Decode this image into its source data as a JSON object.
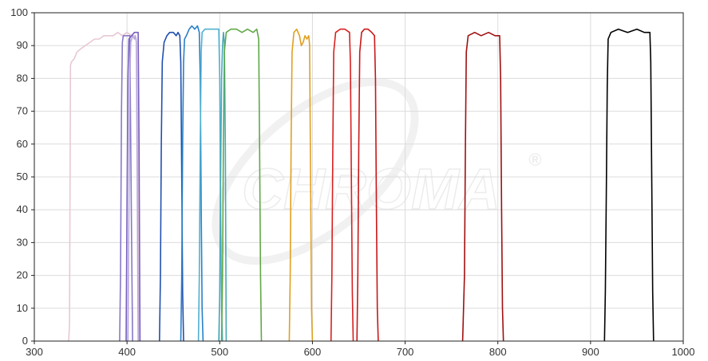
{
  "chart_data": {
    "type": "line",
    "title": "",
    "xlabel": "",
    "ylabel": "",
    "xlim": [
      300,
      1000
    ],
    "ylim": [
      0,
      100
    ],
    "x_ticks": [
      300,
      400,
      500,
      600,
      700,
      800,
      900,
      1000
    ],
    "y_ticks": [
      0,
      10,
      20,
      30,
      40,
      50,
      60,
      70,
      80,
      90,
      100
    ],
    "grid": true,
    "legend": "none",
    "watermark": {
      "brand": "CHROMA",
      "mark": "®"
    },
    "series": [
      {
        "color": "#e8c8d6",
        "points": [
          [
            337,
            0
          ],
          [
            338,
            5
          ],
          [
            339,
            84
          ],
          [
            340,
            85
          ],
          [
            343,
            86
          ],
          [
            346,
            88
          ],
          [
            350,
            89
          ],
          [
            355,
            90
          ],
          [
            360,
            91
          ],
          [
            365,
            92
          ],
          [
            370,
            92
          ],
          [
            375,
            93
          ],
          [
            380,
            93
          ],
          [
            385,
            93
          ],
          [
            390,
            94
          ],
          [
            395,
            93
          ],
          [
            400,
            94
          ],
          [
            405,
            93
          ],
          [
            408,
            93
          ],
          [
            410,
            92
          ],
          [
            412,
            60
          ],
          [
            413,
            0
          ]
        ]
      },
      {
        "color": "#8878c8",
        "points": [
          [
            392,
            0
          ],
          [
            393,
            20
          ],
          [
            394,
            70
          ],
          [
            395,
            91
          ],
          [
            396,
            93
          ],
          [
            400,
            93
          ],
          [
            403,
            93
          ],
          [
            404,
            60
          ],
          [
            405,
            30
          ],
          [
            406,
            0
          ]
        ]
      },
      {
        "color": "#b8a8dc",
        "points": [
          [
            401,
            0
          ],
          [
            402,
            40
          ],
          [
            403,
            80
          ],
          [
            404,
            91
          ],
          [
            406,
            93
          ],
          [
            408,
            92
          ],
          [
            409,
            93
          ],
          [
            410,
            91
          ],
          [
            411,
            50
          ],
          [
            412,
            0
          ]
        ]
      },
      {
        "color": "#7860c0",
        "points": [
          [
            399,
            0
          ],
          [
            400,
            40
          ],
          [
            401,
            80
          ],
          [
            402,
            92
          ],
          [
            405,
            93
          ],
          [
            408,
            94
          ],
          [
            410,
            94
          ],
          [
            412,
            94
          ],
          [
            413,
            60
          ],
          [
            414,
            0
          ]
        ]
      },
      {
        "color": "#2050b0",
        "points": [
          [
            435,
            0
          ],
          [
            436,
            20
          ],
          [
            437,
            60
          ],
          [
            438,
            85
          ],
          [
            440,
            91
          ],
          [
            443,
            93
          ],
          [
            446,
            94
          ],
          [
            450,
            94
          ],
          [
            453,
            93
          ],
          [
            455,
            94
          ],
          [
            457,
            93
          ],
          [
            458,
            85
          ],
          [
            459,
            50
          ],
          [
            460,
            15
          ],
          [
            461,
            0
          ]
        ]
      },
      {
        "color": "#2880c8",
        "points": [
          [
            458,
            0
          ],
          [
            459,
            20
          ],
          [
            460,
            60
          ],
          [
            461,
            85
          ],
          [
            462,
            92
          ],
          [
            464,
            93
          ],
          [
            467,
            95
          ],
          [
            470,
            96
          ],
          [
            473,
            95
          ],
          [
            476,
            96
          ],
          [
            478,
            94
          ],
          [
            479,
            80
          ],
          [
            480,
            40
          ],
          [
            481,
            10
          ],
          [
            482,
            0
          ]
        ]
      },
      {
        "color": "#50b0d0",
        "points": [
          [
            477,
            0
          ],
          [
            478,
            20
          ],
          [
            479,
            60
          ],
          [
            480,
            88
          ],
          [
            481,
            94
          ],
          [
            484,
            95
          ],
          [
            488,
            95
          ],
          [
            492,
            95
          ],
          [
            496,
            95
          ],
          [
            499,
            95
          ],
          [
            500,
            80
          ],
          [
            501,
            40
          ],
          [
            502,
            10
          ],
          [
            503,
            0
          ]
        ]
      },
      {
        "color": "#48a8b8",
        "points": [
          [
            499,
            0
          ],
          [
            500,
            15
          ],
          [
            501,
            50
          ],
          [
            502,
            80
          ],
          [
            503,
            90
          ],
          [
            504,
            94
          ],
          [
            505,
            91
          ],
          [
            506,
            60
          ],
          [
            507,
            0
          ]
        ]
      },
      {
        "color": "#60a848",
        "points": [
          [
            502,
            0
          ],
          [
            503,
            20
          ],
          [
            504,
            60
          ],
          [
            505,
            88
          ],
          [
            507,
            94
          ],
          [
            512,
            95
          ],
          [
            518,
            95
          ],
          [
            524,
            94
          ],
          [
            530,
            95
          ],
          [
            536,
            94
          ],
          [
            540,
            95
          ],
          [
            542,
            92
          ],
          [
            543,
            60
          ],
          [
            544,
            20
          ],
          [
            545,
            0
          ]
        ]
      },
      {
        "color": "#e0a020",
        "points": [
          [
            575,
            0
          ],
          [
            576,
            20
          ],
          [
            577,
            60
          ],
          [
            578,
            88
          ],
          [
            580,
            94
          ],
          [
            583,
            95
          ],
          [
            586,
            93
          ],
          [
            588,
            90
          ],
          [
            590,
            91
          ],
          [
            592,
            93
          ],
          [
            594,
            92
          ],
          [
            596,
            93
          ],
          [
            597,
            90
          ],
          [
            598,
            50
          ],
          [
            599,
            10
          ],
          [
            600,
            0
          ]
        ]
      },
      {
        "color": "#d82020",
        "points": [
          [
            620,
            0
          ],
          [
            621,
            20
          ],
          [
            622,
            60
          ],
          [
            623,
            88
          ],
          [
            625,
            94
          ],
          [
            630,
            95
          ],
          [
            635,
            95
          ],
          [
            640,
            94
          ],
          [
            641,
            85
          ],
          [
            642,
            50
          ],
          [
            643,
            15
          ],
          [
            644,
            0
          ]
        ]
      },
      {
        "color": "#c81818",
        "points": [
          [
            648,
            0
          ],
          [
            649,
            20
          ],
          [
            650,
            60
          ],
          [
            651,
            88
          ],
          [
            653,
            94
          ],
          [
            656,
            95
          ],
          [
            660,
            95
          ],
          [
            664,
            94
          ],
          [
            667,
            93
          ],
          [
            668,
            80
          ],
          [
            669,
            40
          ],
          [
            670,
            10
          ],
          [
            671,
            0
          ]
        ]
      },
      {
        "color": "#a01010",
        "points": [
          [
            762,
            0
          ],
          [
            764,
            20
          ],
          [
            765,
            60
          ],
          [
            766,
            88
          ],
          [
            768,
            93
          ],
          [
            775,
            94
          ],
          [
            782,
            93
          ],
          [
            790,
            94
          ],
          [
            797,
            93
          ],
          [
            802,
            93
          ],
          [
            803,
            80
          ],
          [
            804,
            40
          ],
          [
            805,
            10
          ],
          [
            806,
            0
          ]
        ]
      },
      {
        "color": "#000000",
        "points": [
          [
            915,
            0
          ],
          [
            916,
            15
          ],
          [
            917,
            45
          ],
          [
            918,
            78
          ],
          [
            919,
            92
          ],
          [
            922,
            94
          ],
          [
            930,
            95
          ],
          [
            940,
            94
          ],
          [
            950,
            95
          ],
          [
            958,
            94
          ],
          [
            964,
            94
          ],
          [
            965,
            85
          ],
          [
            966,
            50
          ],
          [
            967,
            15
          ],
          [
            968,
            0
          ]
        ]
      }
    ]
  }
}
